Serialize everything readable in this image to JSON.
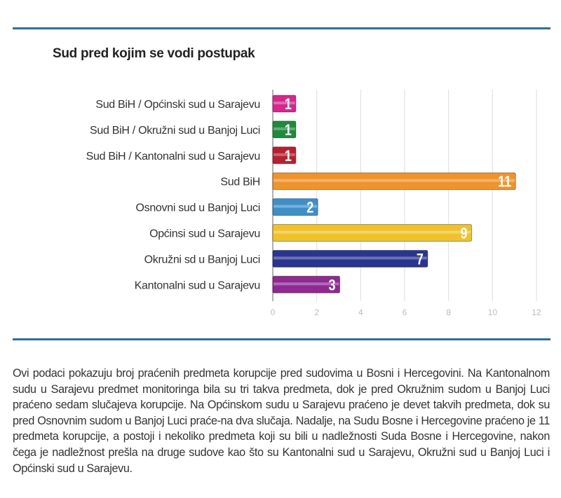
{
  "chart_data": {
    "type": "bar",
    "orientation": "horizontal",
    "title": "Sud pred kojim se vodi postupak",
    "categories": [
      "Sud BiH / Općinski sud u Sarajevu",
      "Sud BiH / Okružni sud u Banjoj Luci",
      "Sud BiH / Kantonalni sud u Sarajevu",
      "Sud BiH",
      "Osnovni sud u Banjoj Luci",
      "Općinsi sud u Sarajevu",
      "Okružni sd u Banjoj Luci",
      "Kantonalni sud u Sarajevu"
    ],
    "values": [
      1,
      1,
      1,
      11,
      2,
      9,
      7,
      3
    ],
    "colors": [
      "#d4288e",
      "#1f8a3c",
      "#b8202e",
      "#f0932a",
      "#3e8fc8",
      "#efc22c",
      "#2a3590",
      "#8e2a92"
    ],
    "xlim": [
      0,
      12
    ],
    "xticks": [
      "0",
      "2",
      "4",
      "6",
      "8",
      "10",
      "12"
    ],
    "grid": true,
    "data_labels": true
  },
  "text": {
    "paragraph": "Ovi podaci pokazuju broj praćenih predmeta korupcije pred sudovima u Bosni i Hercegovini. Na Kantonalnom sudu u Sarajevu predmet monitoringa bila su tri takva predmeta, dok je pred Okružnim sudom u Banjoj Luci praćeno sedam slučajeva korupcije. Na Općinskom sudu u Sarajevu praćeno je devet takvih predmeta, dok su pred Osnovnim sudom u Banjoj Luci praće-na dva slučaja. Nadalje, na Sudu Bosne i Hercegovine praćeno je 11 predmeta korupcije, a postoji i nekoliko predmeta koji su bili u nadležnosti Suda Bosne i Hercegovine, nakon čega je nadležnost prešla na druge sudove kao što su Kantonalni sud u Sarajevu, Okružni sud u Banjoj Luci i Općinski sud u Sarajevu."
  },
  "colors": {
    "rule": "#2f6f9f"
  }
}
